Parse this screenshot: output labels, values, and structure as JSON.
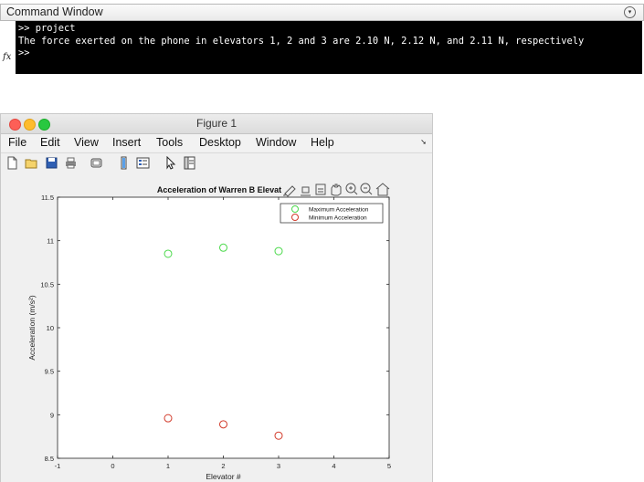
{
  "command_window": {
    "title": "Command Window",
    "lines": [
      ">> project",
      "The force exerted on the phone in elevators 1, 2 and 3 are 2.10 N, 2.12 N, and 2.11 N, respectively",
      ">>"
    ],
    "fx_label": "fx"
  },
  "figure": {
    "title": "Figure 1",
    "menu": [
      "File",
      "Edit",
      "View",
      "Insert",
      "Tools",
      "Desktop",
      "Window",
      "Help"
    ],
    "toolbar_icons": [
      "new-figure-icon",
      "open-file-icon",
      "save-icon",
      "print-icon",
      "link-icon",
      "insert-colorbar-icon",
      "insert-legend-icon",
      "edit-plot-icon",
      "property-inspector-icon"
    ],
    "axes_toolbar_icons": [
      "brush-icon",
      "data-tip-icon",
      "rotate-icon",
      "pan-icon",
      "zoom-in-icon",
      "zoom-out-icon",
      "home-icon"
    ]
  },
  "chart_data": {
    "type": "scatter",
    "title": "Acceleration of Warren B Elevat",
    "xlabel": "Elevator #",
    "ylabel": "Acceleration (m/s²)",
    "xlim": [
      -1,
      5
    ],
    "ylim": [
      8.5,
      11.5
    ],
    "xticks": [
      "-1",
      "0",
      "1",
      "2",
      "3",
      "4",
      "5"
    ],
    "yticks": [
      "8.5",
      "9",
      "9.5",
      "10",
      "10.5",
      "11",
      "11.5"
    ],
    "legend_position": "top-right",
    "series": [
      {
        "name": "Maximum Acceleration",
        "color": "#4ad94a",
        "x": [
          1,
          2,
          3
        ],
        "y": [
          10.85,
          10.92,
          10.88
        ]
      },
      {
        "name": "Minimum Acceleration",
        "color": "#d23a2a",
        "x": [
          1,
          2,
          3
        ],
        "y": [
          8.96,
          8.89,
          8.76
        ]
      }
    ],
    "grid": false
  }
}
